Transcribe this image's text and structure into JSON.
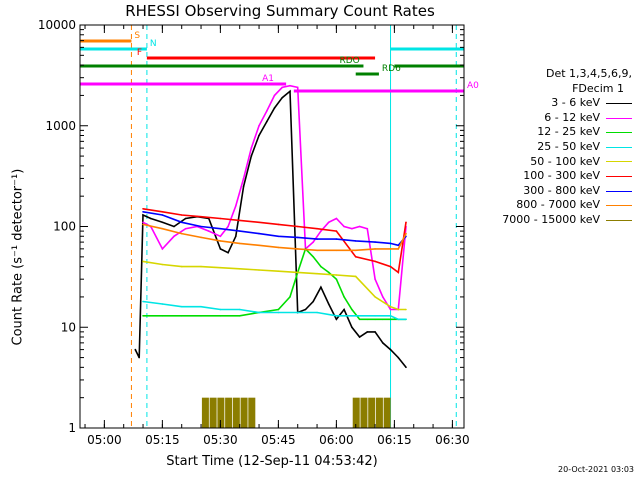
{
  "title": "RHESSI Observing Summary Count Rates",
  "xlabel": "Start Time (12-Sep-11 04:53:42)",
  "ylabel": "Count Rate (s⁻¹ detector⁻¹)",
  "generated": "20-Oct-2021 03:03",
  "legend": {
    "header1": "Det 1,3,4,5,6,9,",
    "header2": "FDecim 1",
    "entries": [
      {
        "label": "3 - 6 keV",
        "color": "#000000"
      },
      {
        "label": "6 - 12 keV",
        "color": "#ff00ff"
      },
      {
        "label": "12 - 25 keV",
        "color": "#00dd00"
      },
      {
        "label": "25 - 50 keV",
        "color": "#00e5e5"
      },
      {
        "label": "50 - 100 keV",
        "color": "#d6d600"
      },
      {
        "label": "100 - 300 keV",
        "color": "#ff0000"
      },
      {
        "label": "300 - 800 keV",
        "color": "#0000ff"
      },
      {
        "label": "800 - 7000 keV",
        "color": "#ff8000"
      },
      {
        "label": "7000 - 15000 keV",
        "color": "#8b7d00"
      }
    ]
  },
  "chart_data": {
    "type": "line",
    "title": "RHESSI Observing Summary Count Rates",
    "xlabel": "Start Time (12-Sep-11 04:53:42)",
    "ylabel": "Count Rate (s⁻¹ detector⁻¹)",
    "xlim": [
      "04:53:42",
      "06:33:00"
    ],
    "ylim": [
      1,
      10000
    ],
    "yscale": "log",
    "x_ticks": [
      "05:00",
      "05:15",
      "05:30",
      "05:45",
      "06:00",
      "06:15",
      "06:30"
    ],
    "y_ticks": [
      "1",
      "10",
      "100",
      "1000",
      "10000"
    ],
    "series": [
      {
        "name": "3 - 6 keV",
        "color": "#000000",
        "x": [
          "05:08",
          "05:09",
          "05:10",
          "05:12",
          "05:15",
          "05:18",
          "05:21",
          "05:24",
          "05:27",
          "05:30",
          "05:32",
          "05:34",
          "05:36",
          "05:38",
          "05:40",
          "05:42",
          "05:44",
          "05:46",
          "05:48",
          "05:50",
          "05:52",
          "05:54",
          "05:56",
          "05:58",
          "06:00",
          "06:02",
          "06:04",
          "06:06",
          "06:08",
          "06:10",
          "06:12",
          "06:14",
          "06:16",
          "06:18"
        ],
        "y": [
          6,
          5,
          130,
          120,
          110,
          100,
          120,
          125,
          120,
          60,
          55,
          80,
          250,
          500,
          800,
          1100,
          1500,
          1900,
          2200,
          14,
          15,
          18,
          25,
          17,
          12,
          15,
          10,
          8,
          9,
          9,
          7,
          6,
          5,
          4
        ]
      },
      {
        "name": "6 - 12 keV",
        "color": "#ff00ff",
        "x": [
          "05:10",
          "05:12",
          "05:15",
          "05:18",
          "05:21",
          "05:24",
          "05:27",
          "05:30",
          "05:32",
          "05:34",
          "05:36",
          "05:38",
          "05:40",
          "05:42",
          "05:44",
          "05:46",
          "05:48",
          "05:50",
          "05:52",
          "05:54",
          "05:56",
          "05:58",
          "06:00",
          "06:02",
          "06:04",
          "06:06",
          "06:08",
          "06:10",
          "06:12",
          "06:14",
          "06:16",
          "06:18"
        ],
        "y": [
          110,
          100,
          60,
          80,
          95,
          100,
          90,
          80,
          100,
          160,
          300,
          600,
          1000,
          1400,
          2000,
          2400,
          2500,
          2400,
          60,
          70,
          90,
          110,
          120,
          100,
          95,
          100,
          95,
          30,
          20,
          15,
          15,
          100
        ]
      },
      {
        "name": "12 - 25 keV",
        "color": "#00dd00",
        "x": [
          "05:10",
          "05:15",
          "05:20",
          "05:25",
          "05:30",
          "05:35",
          "05:40",
          "05:45",
          "05:48",
          "05:50",
          "05:52",
          "05:54",
          "05:56",
          "05:58",
          "06:00",
          "06:02",
          "06:04",
          "06:06",
          "06:08",
          "06:10",
          "06:12",
          "06:14",
          "06:16",
          "06:18"
        ],
        "y": [
          13,
          13,
          13,
          13,
          13,
          13,
          14,
          15,
          20,
          35,
          60,
          50,
          40,
          35,
          30,
          20,
          15,
          12,
          12,
          12,
          12,
          12,
          12,
          12
        ]
      },
      {
        "name": "25 - 50 keV",
        "color": "#00e5e5",
        "x": [
          "05:10",
          "05:15",
          "05:20",
          "05:25",
          "05:30",
          "05:35",
          "05:40",
          "05:45",
          "05:50",
          "05:55",
          "06:00",
          "06:05",
          "06:10",
          "06:14",
          "06:16",
          "06:18"
        ],
        "y": [
          18,
          17,
          16,
          16,
          15,
          15,
          14,
          14,
          14,
          14,
          13,
          13,
          13,
          13,
          12,
          12
        ]
      },
      {
        "name": "50 - 100 keV",
        "color": "#d6d600",
        "x": [
          "05:10",
          "05:15",
          "05:20",
          "05:25",
          "05:30",
          "05:35",
          "05:40",
          "05:45",
          "05:50",
          "05:55",
          "06:00",
          "06:05",
          "06:10",
          "06:14",
          "06:16",
          "06:18"
        ],
        "y": [
          45,
          42,
          40,
          40,
          39,
          38,
          37,
          36,
          35,
          34,
          33,
          32,
          20,
          16,
          15,
          15
        ]
      },
      {
        "name": "100 - 300 keV",
        "color": "#ff0000",
        "x": [
          "05:10",
          "05:15",
          "05:20",
          "05:25",
          "05:30",
          "05:35",
          "05:40",
          "05:45",
          "05:50",
          "05:55",
          "06:00",
          "06:05",
          "06:10",
          "06:14",
          "06:16",
          "06:18"
        ],
        "y": [
          150,
          140,
          130,
          125,
          120,
          115,
          110,
          105,
          100,
          95,
          90,
          50,
          45,
          40,
          35,
          110
        ]
      },
      {
        "name": "300 - 800 keV",
        "color": "#0000ff",
        "x": [
          "05:10",
          "05:15",
          "05:20",
          "05:25",
          "05:30",
          "05:35",
          "05:40",
          "05:45",
          "05:50",
          "05:55",
          "06:00",
          "06:05",
          "06:10",
          "06:14",
          "06:16",
          "06:18"
        ],
        "y": [
          140,
          130,
          110,
          100,
          95,
          90,
          85,
          80,
          78,
          75,
          75,
          72,
          70,
          68,
          65,
          80
        ]
      },
      {
        "name": "800 - 7000 keV",
        "color": "#ff8000",
        "x": [
          "05:10",
          "05:15",
          "05:20",
          "05:25",
          "05:30",
          "05:35",
          "05:40",
          "05:45",
          "05:50",
          "05:55",
          "06:00",
          "06:05",
          "06:10",
          "06:14",
          "06:16",
          "06:18"
        ],
        "y": [
          105,
          95,
          85,
          78,
          72,
          68,
          65,
          62,
          60,
          58,
          58,
          58,
          60,
          60,
          60,
          85
        ]
      },
      {
        "name": "7000 - 15000 keV",
        "color": "#8b7d00",
        "x": [
          "05:26",
          "05:28",
          "05:30",
          "05:32",
          "05:34",
          "05:36",
          "05:38",
          "06:05",
          "06:07",
          "06:09",
          "06:11",
          "06:13"
        ],
        "y": [
          2,
          2,
          2,
          2,
          2,
          2,
          2,
          2,
          2,
          2,
          2,
          2
        ]
      }
    ],
    "flag_bars": [
      {
        "label": "S",
        "color": "#ff8000",
        "start": "04:53:42",
        "end": "05:07"
      },
      {
        "label": "N",
        "color": "#00e5e5",
        "start": "04:53:42",
        "end": "05:11"
      },
      {
        "label": "N",
        "color": "#00e5e5",
        "start": "06:14",
        "end": "06:33"
      },
      {
        "label": "F",
        "color": "#ff0000",
        "start": "05:11",
        "end": "06:10"
      },
      {
        "label": "RDO",
        "color": "#008000",
        "start": "04:53:42",
        "end": "06:07"
      },
      {
        "label": "RDO",
        "color": "#008000",
        "start": "06:15",
        "end": "06:33"
      },
      {
        "label": "RD6",
        "color": "#008000",
        "start": "06:05",
        "end": "06:11"
      },
      {
        "label": "A1",
        "color": "#ff00ff",
        "start": "04:53:42",
        "end": "05:47"
      },
      {
        "label": "A0",
        "color": "#ff00ff",
        "start": "05:49",
        "end": "06:33"
      }
    ],
    "vertical_markers": [
      {
        "time": "05:07",
        "color": "#ff8000",
        "style": "dashed"
      },
      {
        "time": "05:11",
        "color": "#00e5e5",
        "style": "dashed"
      },
      {
        "time": "04:53:42",
        "color": "#00e5e5",
        "style": "solid"
      },
      {
        "time": "06:14",
        "color": "#00e5e5",
        "style": "solid"
      },
      {
        "time": "06:31",
        "color": "#00e5e5",
        "style": "dashed"
      }
    ]
  }
}
